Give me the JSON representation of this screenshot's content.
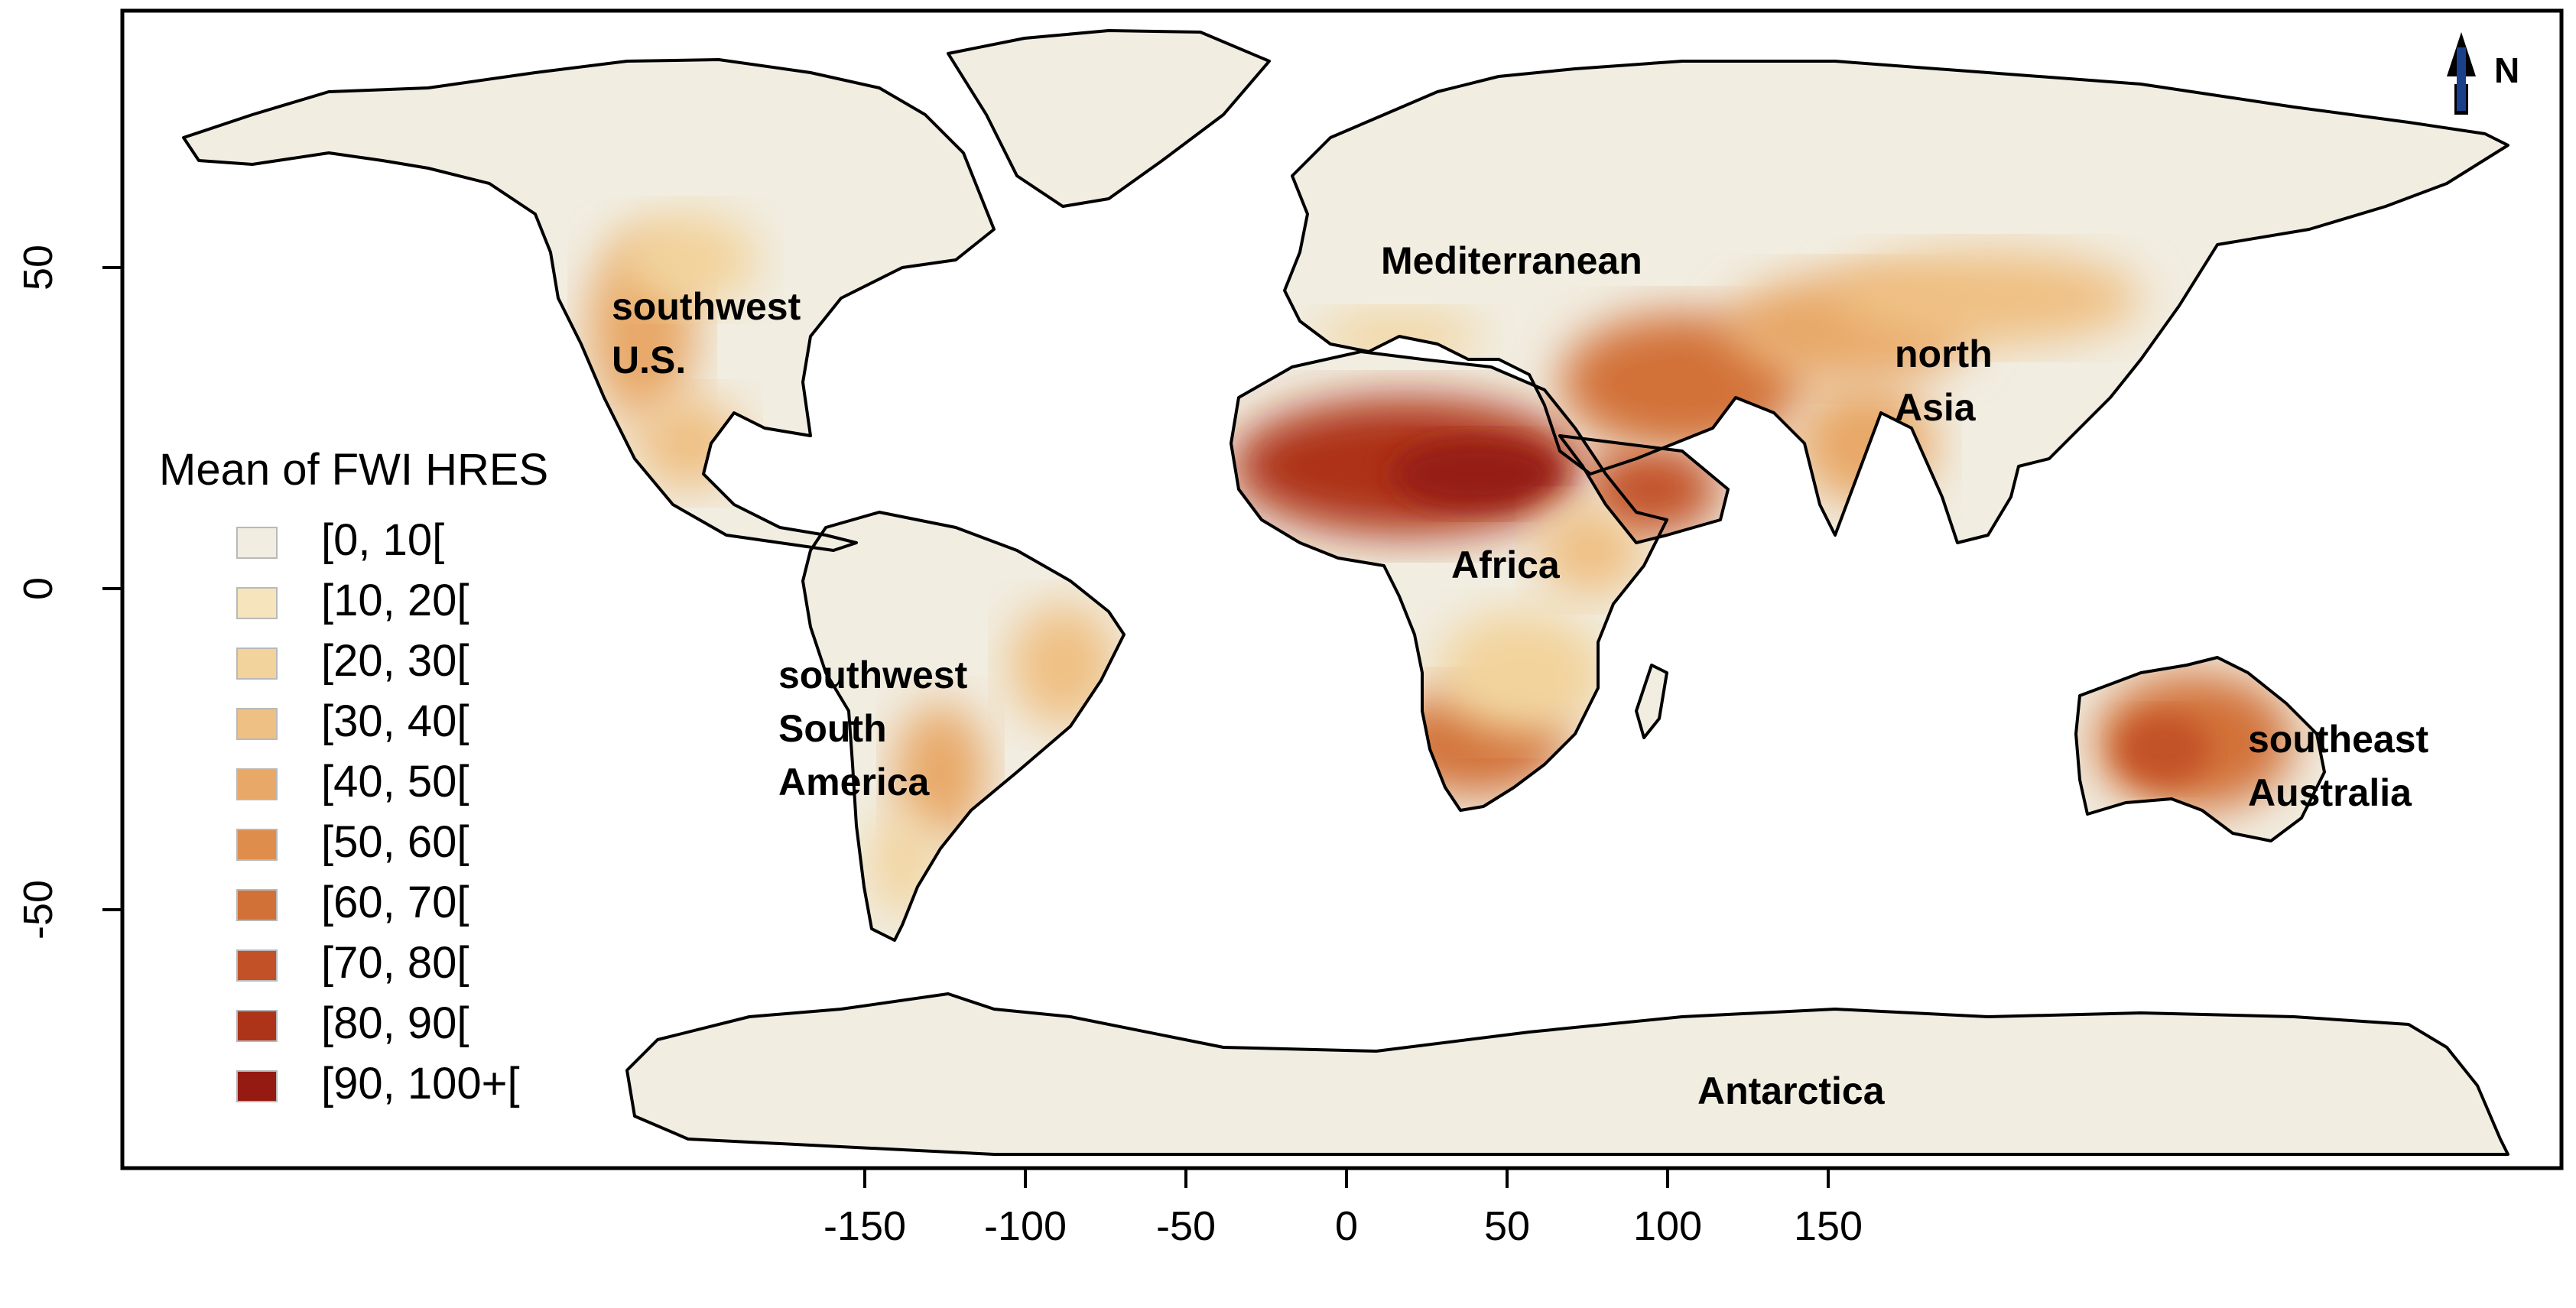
{
  "map": {
    "legend_title": "Mean of FWI HRES",
    "north_label": "N",
    "x_ticks": [
      -150,
      -100,
      -50,
      0,
      50,
      100,
      150
    ],
    "y_ticks": [
      50,
      0,
      -50
    ],
    "x_range": [
      -180,
      180
    ],
    "y_range": [
      -90,
      90
    ],
    "classes": [
      {
        "label": "[0, 10[",
        "color": "#f1ede1"
      },
      {
        "label": "[10, 20[",
        "color": "#f5e4bc"
      },
      {
        "label": "[20, 30[",
        "color": "#f2d39b"
      },
      {
        "label": "[30, 40[",
        "color": "#efc083"
      },
      {
        "label": "[40, 50[",
        "color": "#e8a868"
      },
      {
        "label": "[50, 60[",
        "color": "#df8d4d"
      },
      {
        "label": "[60, 70[",
        "color": "#d27137"
      },
      {
        "label": "[70, 80[",
        "color": "#c25127"
      },
      {
        "label": "[80, 90[",
        "color": "#ad3319"
      },
      {
        "label": "[90, 100+[",
        "color": "#941a12"
      }
    ],
    "regions": [
      {
        "id": "southwest-us",
        "lines": [
          "southwest",
          "U.S."
        ]
      },
      {
        "id": "mediterranean",
        "lines": [
          "Mediterranean"
        ]
      },
      {
        "id": "north-asia",
        "lines": [
          "north",
          "Asia"
        ]
      },
      {
        "id": "africa",
        "lines": [
          "Africa"
        ]
      },
      {
        "id": "southwest-south-america",
        "lines": [
          "southwest",
          "South",
          "America"
        ]
      },
      {
        "id": "southeast-australia",
        "lines": [
          "southeast",
          "Australia"
        ]
      },
      {
        "id": "antarctica",
        "lines": [
          "Antarctica"
        ]
      }
    ]
  }
}
